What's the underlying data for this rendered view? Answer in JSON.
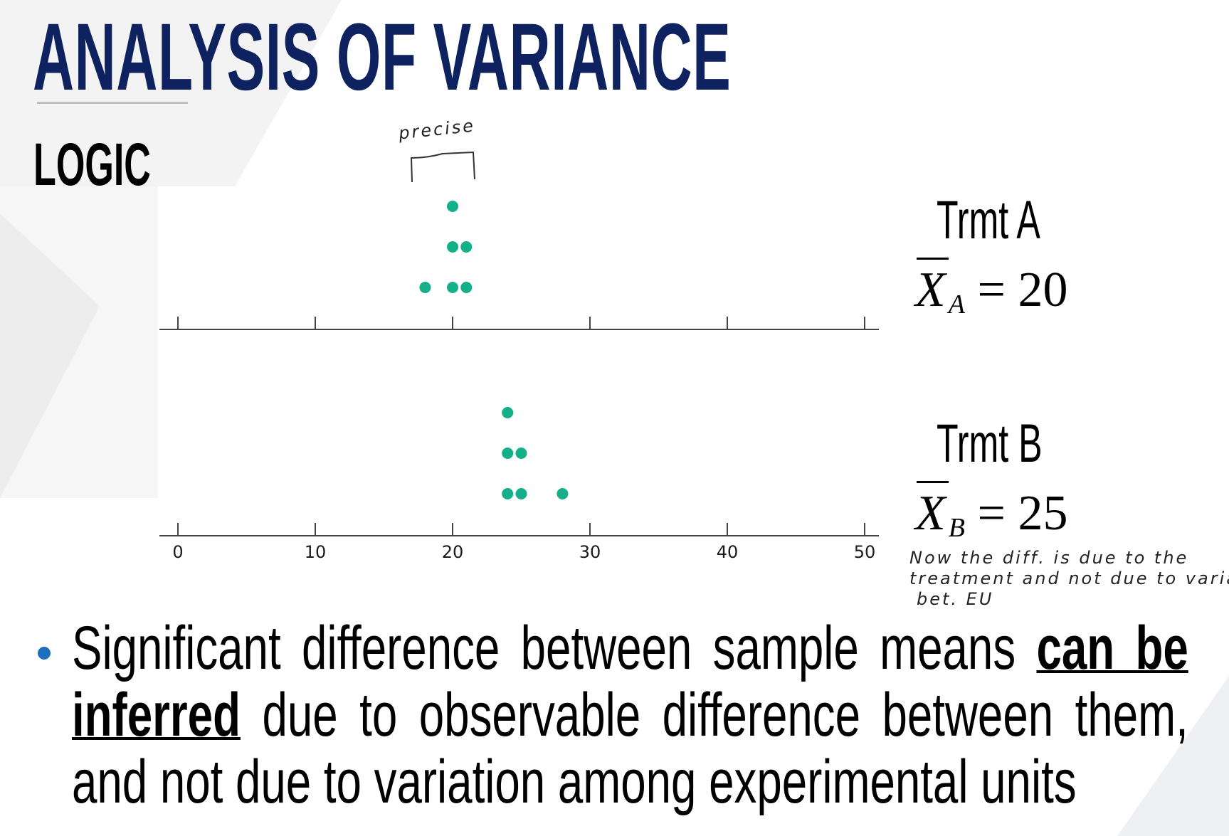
{
  "slide": {
    "title": "ANALYSIS OF VARIANCE",
    "subtitle": "LOGIC",
    "treatment_a": {
      "label": "Trmt A",
      "mean_symbol": "X",
      "mean_sub": "A",
      "mean_eq": "= 20"
    },
    "treatment_b": {
      "label": "Trmt B",
      "mean_symbol": "X",
      "mean_sub": "B",
      "mean_eq": "= 25"
    },
    "annotations": {
      "precise": "precise",
      "note_line1": "Now the diff. is due to the",
      "note_line2": "treatment and not due to variation",
      "note_line3": "bet. EU"
    },
    "bullet": {
      "part1": "Significant difference between sample means ",
      "emphasis": "can be inferred",
      "part2": " due to observable difference between them, and not due to variation among experimental units"
    },
    "colors": {
      "title": "#0e2260",
      "dots": "#14b08a",
      "bullet": "#1f6fc0"
    }
  },
  "chart_data": [
    {
      "type": "scatter",
      "title": "Trmt A",
      "subtype": "dot plot",
      "values": [
        18,
        20,
        20,
        20,
        21,
        21
      ],
      "mean": 20,
      "xlim": [
        0,
        50
      ],
      "ticks": [
        0,
        10,
        20,
        30,
        40,
        50
      ]
    },
    {
      "type": "scatter",
      "title": "Trmt B",
      "subtype": "dot plot",
      "values": [
        24,
        24,
        24,
        25,
        25,
        28
      ],
      "mean": 25,
      "xlim": [
        0,
        50
      ],
      "ticks": [
        "0",
        "10",
        "20",
        "30",
        "40",
        "50"
      ]
    }
  ]
}
